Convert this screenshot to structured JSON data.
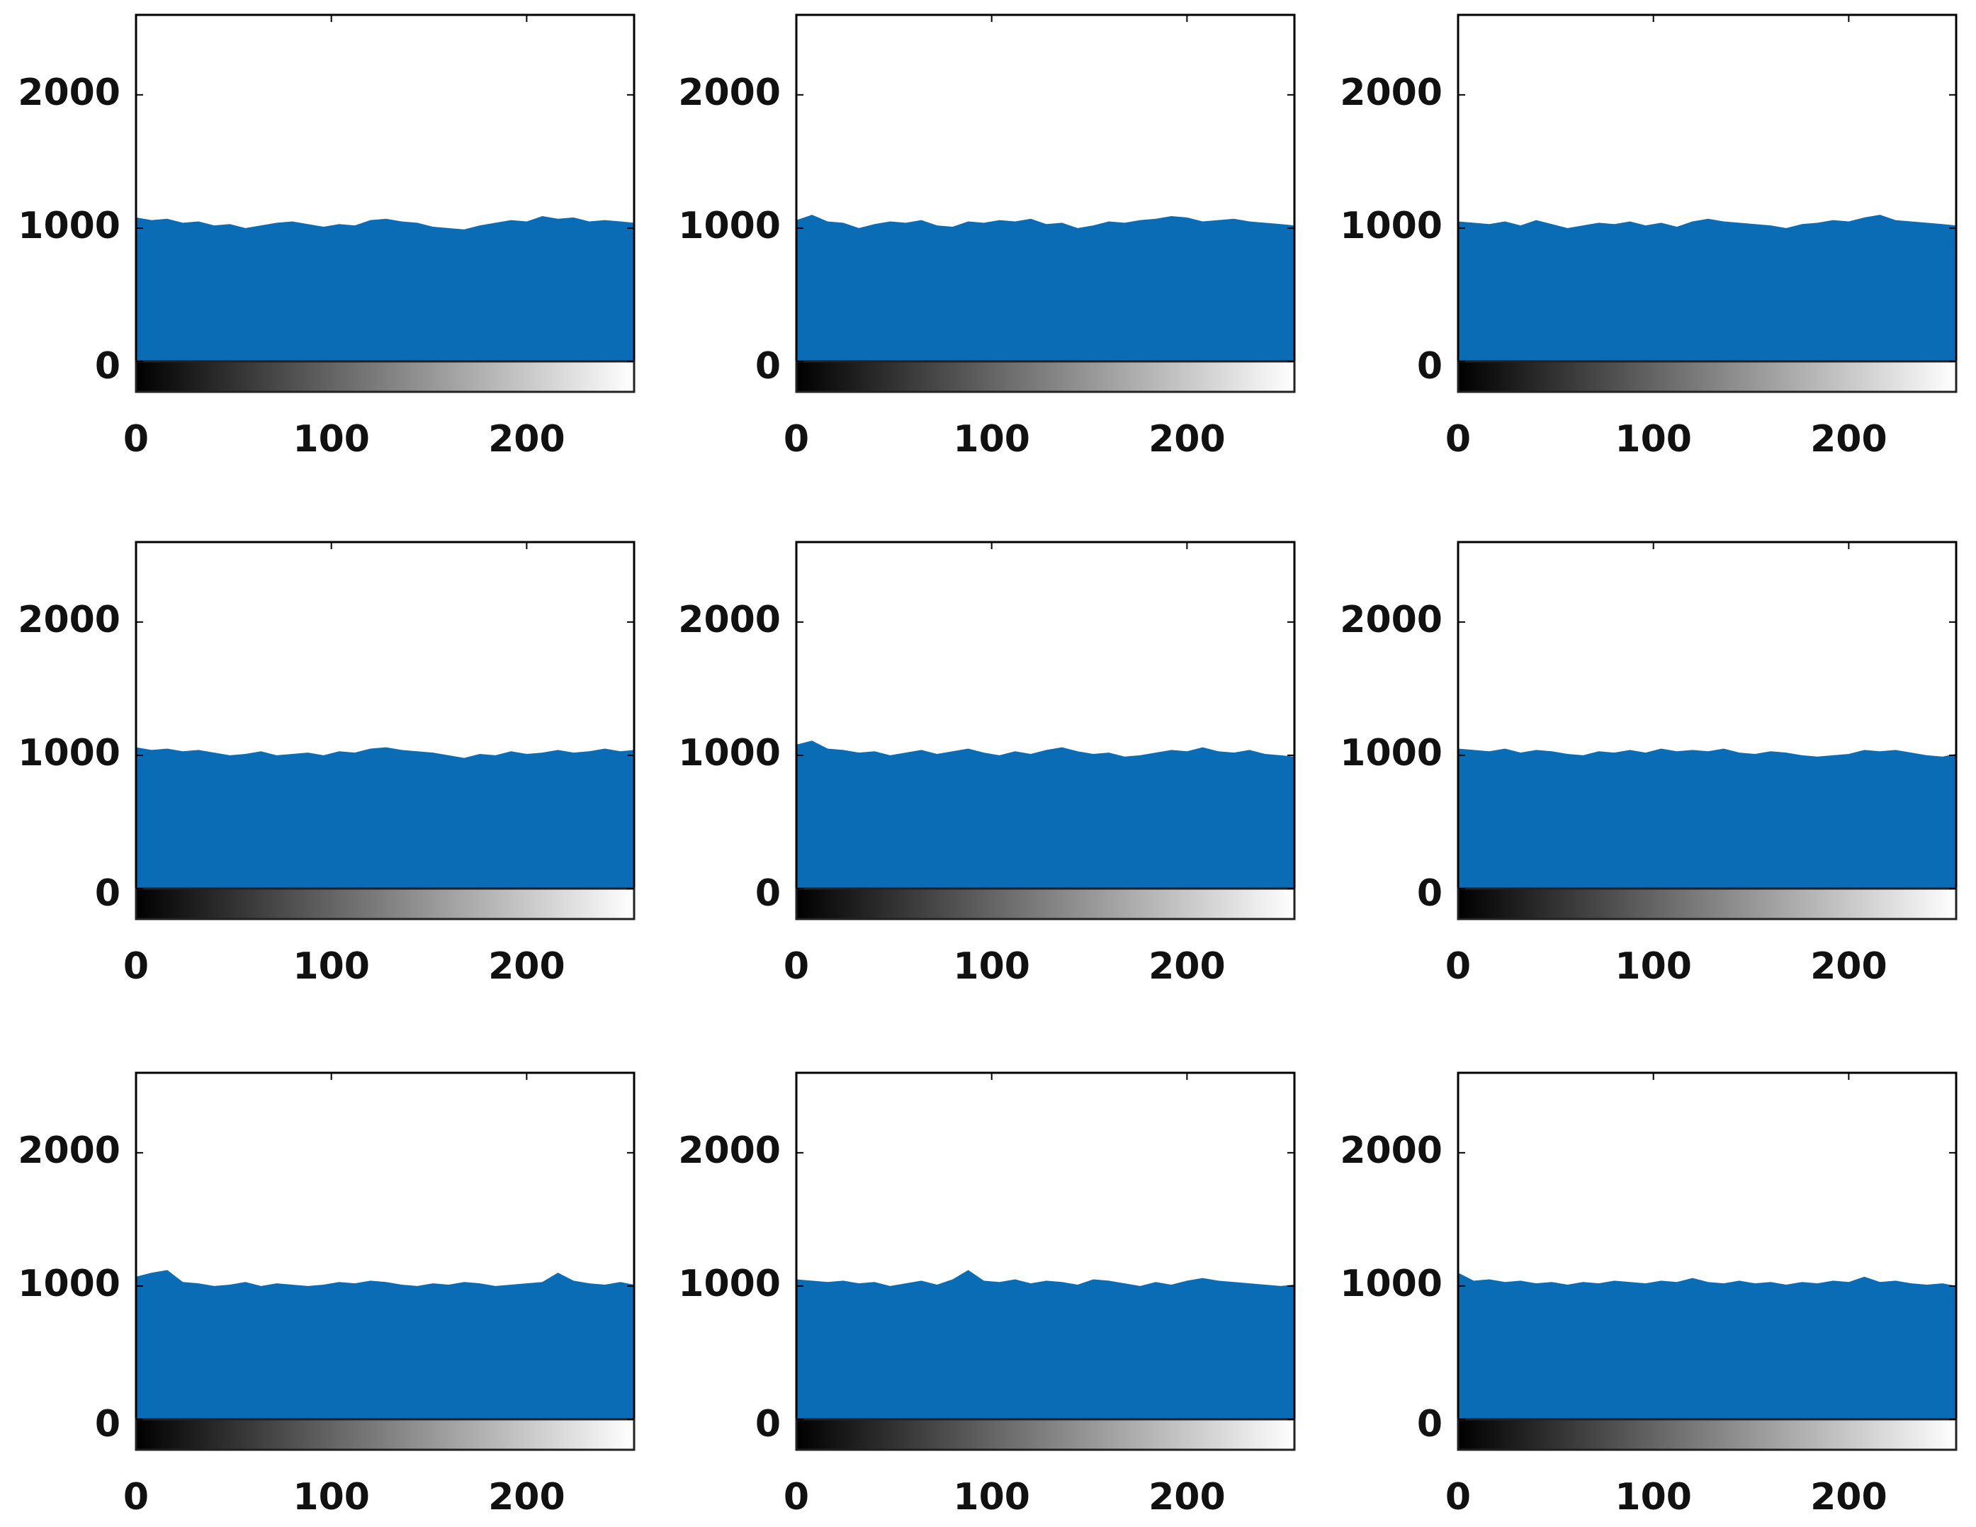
{
  "chart_data": [
    {
      "type": "area",
      "color": "#0a6cb4",
      "xlim": [
        0,
        255
      ],
      "ylim": [
        0,
        2600
      ],
      "xticks": [
        0,
        100,
        200
      ],
      "yticks": [
        0,
        1000,
        2000
      ],
      "x": [
        0,
        8,
        16,
        24,
        32,
        40,
        48,
        56,
        64,
        72,
        80,
        88,
        96,
        104,
        112,
        120,
        128,
        136,
        144,
        152,
        160,
        168,
        176,
        184,
        192,
        200,
        208,
        216,
        224,
        232,
        240,
        248,
        255
      ],
      "values": [
        1080,
        1060,
        1070,
        1040,
        1050,
        1020,
        1030,
        1000,
        1020,
        1040,
        1050,
        1030,
        1010,
        1030,
        1020,
        1060,
        1070,
        1050,
        1040,
        1010,
        1000,
        990,
        1020,
        1040,
        1060,
        1050,
        1090,
        1070,
        1080,
        1050,
        1060,
        1050,
        1040
      ]
    },
    {
      "type": "area",
      "color": "#0a6cb4",
      "xlim": [
        0,
        255
      ],
      "ylim": [
        0,
        2600
      ],
      "xticks": [
        0,
        100,
        200
      ],
      "yticks": [
        0,
        1000,
        2000
      ],
      "x": [
        0,
        8,
        16,
        24,
        32,
        40,
        48,
        56,
        64,
        72,
        80,
        88,
        96,
        104,
        112,
        120,
        128,
        136,
        144,
        152,
        160,
        168,
        176,
        184,
        192,
        200,
        208,
        216,
        224,
        232,
        240,
        248,
        255
      ],
      "values": [
        1060,
        1100,
        1050,
        1040,
        1000,
        1030,
        1050,
        1040,
        1060,
        1020,
        1010,
        1050,
        1040,
        1060,
        1050,
        1070,
        1030,
        1040,
        1000,
        1020,
        1050,
        1040,
        1060,
        1070,
        1090,
        1080,
        1050,
        1060,
        1070,
        1050,
        1040,
        1030,
        1020
      ]
    },
    {
      "type": "area",
      "color": "#0a6cb4",
      "xlim": [
        0,
        255
      ],
      "ylim": [
        0,
        2600
      ],
      "xticks": [
        0,
        100,
        200
      ],
      "yticks": [
        0,
        1000,
        2000
      ],
      "x": [
        0,
        8,
        16,
        24,
        32,
        40,
        48,
        56,
        64,
        72,
        80,
        88,
        96,
        104,
        112,
        120,
        128,
        136,
        144,
        152,
        160,
        168,
        176,
        184,
        192,
        200,
        208,
        216,
        224,
        232,
        240,
        248,
        255
      ],
      "values": [
        1050,
        1040,
        1030,
        1050,
        1020,
        1060,
        1030,
        1000,
        1020,
        1040,
        1030,
        1050,
        1020,
        1040,
        1010,
        1050,
        1070,
        1050,
        1040,
        1030,
        1020,
        1000,
        1030,
        1040,
        1060,
        1050,
        1080,
        1100,
        1060,
        1050,
        1040,
        1030,
        1020
      ]
    },
    {
      "type": "area",
      "color": "#0a6cb4",
      "xlim": [
        0,
        255
      ],
      "ylim": [
        0,
        2600
      ],
      "xticks": [
        0,
        100,
        200
      ],
      "yticks": [
        0,
        1000,
        2000
      ],
      "x": [
        0,
        8,
        16,
        24,
        32,
        40,
        48,
        56,
        64,
        72,
        80,
        88,
        96,
        104,
        112,
        120,
        128,
        136,
        144,
        152,
        160,
        168,
        176,
        184,
        192,
        200,
        208,
        216,
        224,
        232,
        240,
        248,
        255
      ],
      "values": [
        1060,
        1040,
        1050,
        1030,
        1040,
        1020,
        1000,
        1010,
        1030,
        1000,
        1010,
        1020,
        1000,
        1030,
        1020,
        1050,
        1060,
        1040,
        1030,
        1020,
        1000,
        980,
        1010,
        1000,
        1030,
        1010,
        1020,
        1040,
        1020,
        1030,
        1050,
        1030,
        1040
      ]
    },
    {
      "type": "area",
      "color": "#0a6cb4",
      "xlim": [
        0,
        255
      ],
      "ylim": [
        0,
        2600
      ],
      "xticks": [
        0,
        100,
        200
      ],
      "yticks": [
        0,
        1000,
        2000
      ],
      "x": [
        0,
        8,
        16,
        24,
        32,
        40,
        48,
        56,
        64,
        72,
        80,
        88,
        96,
        104,
        112,
        120,
        128,
        136,
        144,
        152,
        160,
        168,
        176,
        184,
        192,
        200,
        208,
        216,
        224,
        232,
        240,
        248,
        255
      ],
      "values": [
        1080,
        1110,
        1050,
        1040,
        1020,
        1030,
        1000,
        1020,
        1040,
        1010,
        1030,
        1050,
        1020,
        1000,
        1030,
        1010,
        1040,
        1060,
        1030,
        1010,
        1020,
        990,
        1000,
        1020,
        1040,
        1030,
        1060,
        1030,
        1020,
        1040,
        1010,
        1000,
        990
      ]
    },
    {
      "type": "area",
      "color": "#0a6cb4",
      "xlim": [
        0,
        255
      ],
      "ylim": [
        0,
        2600
      ],
      "xticks": [
        0,
        100,
        200
      ],
      "yticks": [
        0,
        1000,
        2000
      ],
      "x": [
        0,
        8,
        16,
        24,
        32,
        40,
        48,
        56,
        64,
        72,
        80,
        88,
        96,
        104,
        112,
        120,
        128,
        136,
        144,
        152,
        160,
        168,
        176,
        184,
        192,
        200,
        208,
        216,
        224,
        232,
        240,
        248,
        255
      ],
      "values": [
        1050,
        1040,
        1030,
        1050,
        1020,
        1040,
        1030,
        1010,
        1000,
        1030,
        1020,
        1040,
        1020,
        1050,
        1030,
        1040,
        1030,
        1050,
        1020,
        1010,
        1030,
        1020,
        1000,
        990,
        1000,
        1010,
        1040,
        1030,
        1040,
        1020,
        1000,
        990,
        1010
      ]
    },
    {
      "type": "area",
      "color": "#0a6cb4",
      "xlim": [
        0,
        255
      ],
      "ylim": [
        0,
        2600
      ],
      "xticks": [
        0,
        100,
        200
      ],
      "yticks": [
        0,
        1000,
        2000
      ],
      "x": [
        0,
        8,
        16,
        24,
        32,
        40,
        48,
        56,
        64,
        72,
        80,
        88,
        96,
        104,
        112,
        120,
        128,
        136,
        144,
        152,
        160,
        168,
        176,
        184,
        192,
        200,
        208,
        216,
        224,
        232,
        240,
        248,
        255
      ],
      "values": [
        1070,
        1100,
        1120,
        1030,
        1020,
        1000,
        1010,
        1030,
        1000,
        1020,
        1010,
        1000,
        1010,
        1030,
        1020,
        1040,
        1030,
        1010,
        1000,
        1020,
        1010,
        1030,
        1020,
        1000,
        1010,
        1020,
        1030,
        1100,
        1040,
        1020,
        1010,
        1030,
        1010
      ]
    },
    {
      "type": "area",
      "color": "#0a6cb4",
      "xlim": [
        0,
        255
      ],
      "ylim": [
        0,
        2600
      ],
      "xticks": [
        0,
        100,
        200
      ],
      "yticks": [
        0,
        1000,
        2000
      ],
      "x": [
        0,
        8,
        16,
        24,
        32,
        40,
        48,
        56,
        64,
        72,
        80,
        88,
        96,
        104,
        112,
        120,
        128,
        136,
        144,
        152,
        160,
        168,
        176,
        184,
        192,
        200,
        208,
        216,
        224,
        232,
        240,
        248,
        255
      ],
      "values": [
        1050,
        1040,
        1030,
        1040,
        1020,
        1030,
        1000,
        1020,
        1040,
        1010,
        1050,
        1120,
        1040,
        1030,
        1050,
        1020,
        1040,
        1030,
        1010,
        1050,
        1040,
        1020,
        1000,
        1030,
        1010,
        1040,
        1060,
        1040,
        1030,
        1020,
        1010,
        1000,
        1010
      ]
    },
    {
      "type": "area",
      "color": "#0a6cb4",
      "xlim": [
        0,
        255
      ],
      "ylim": [
        0,
        2600
      ],
      "xticks": [
        0,
        100,
        200
      ],
      "yticks": [
        0,
        1000,
        2000
      ],
      "x": [
        0,
        8,
        16,
        24,
        32,
        40,
        48,
        56,
        64,
        72,
        80,
        88,
        96,
        104,
        112,
        120,
        128,
        136,
        144,
        152,
        160,
        168,
        176,
        184,
        192,
        200,
        208,
        216,
        224,
        232,
        240,
        248,
        255
      ],
      "values": [
        1100,
        1040,
        1050,
        1030,
        1040,
        1020,
        1030,
        1010,
        1030,
        1020,
        1040,
        1030,
        1020,
        1040,
        1030,
        1060,
        1030,
        1020,
        1040,
        1020,
        1030,
        1010,
        1030,
        1020,
        1040,
        1030,
        1070,
        1030,
        1040,
        1020,
        1010,
        1020,
        1000
      ]
    }
  ]
}
